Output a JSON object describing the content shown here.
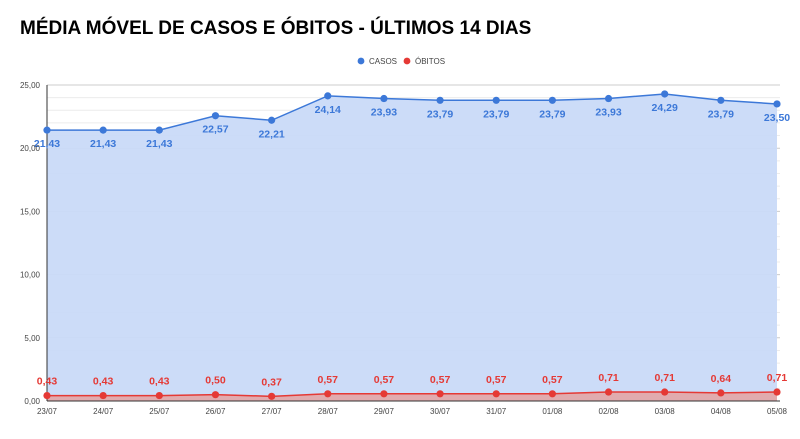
{
  "chart_data": {
    "type": "area",
    "title": "MÉDIA MÓVEL DE CASOS E ÓBITOS - ÚLTIMOS 14 DIAS",
    "xlabel": "",
    "ylabel": "",
    "ylim": [
      0,
      25
    ],
    "y_ticks": [
      "0,00",
      "5,00",
      "10,00",
      "15,00",
      "20,00",
      "25,00"
    ],
    "categories": [
      "23/07",
      "24/07",
      "25/07",
      "26/07",
      "27/07",
      "28/07",
      "29/07",
      "30/07",
      "31/07",
      "01/08",
      "02/08",
      "03/08",
      "04/08",
      "05/08"
    ],
    "series": [
      {
        "name": "CASOS",
        "color": "#3c78d8",
        "fill": "#c9daf8",
        "values": [
          21.43,
          21.43,
          21.43,
          22.57,
          22.21,
          24.14,
          23.93,
          23.79,
          23.79,
          23.79,
          23.93,
          24.29,
          23.79,
          23.5
        ],
        "labels": [
          "21,43",
          "21,43",
          "21,43",
          "22,57",
          "22,21",
          "24,14",
          "23,93",
          "23,79",
          "23,79",
          "23,79",
          "23,93",
          "24,29",
          "23,79",
          "23,50"
        ]
      },
      {
        "name": "ÓBITOS",
        "color": "#e53935",
        "fill": "#e3a5a5",
        "values": [
          0.43,
          0.43,
          0.43,
          0.5,
          0.37,
          0.57,
          0.57,
          0.57,
          0.57,
          0.57,
          0.71,
          0.71,
          0.64,
          0.71
        ],
        "labels": [
          "0,43",
          "0,43",
          "0,43",
          "0,50",
          "0,37",
          "0,57",
          "0,57",
          "0,57",
          "0,57",
          "0,57",
          "0,71",
          "0,71",
          "0,64",
          "0,71"
        ]
      }
    ],
    "legend_position": "top-center",
    "grid": true
  }
}
